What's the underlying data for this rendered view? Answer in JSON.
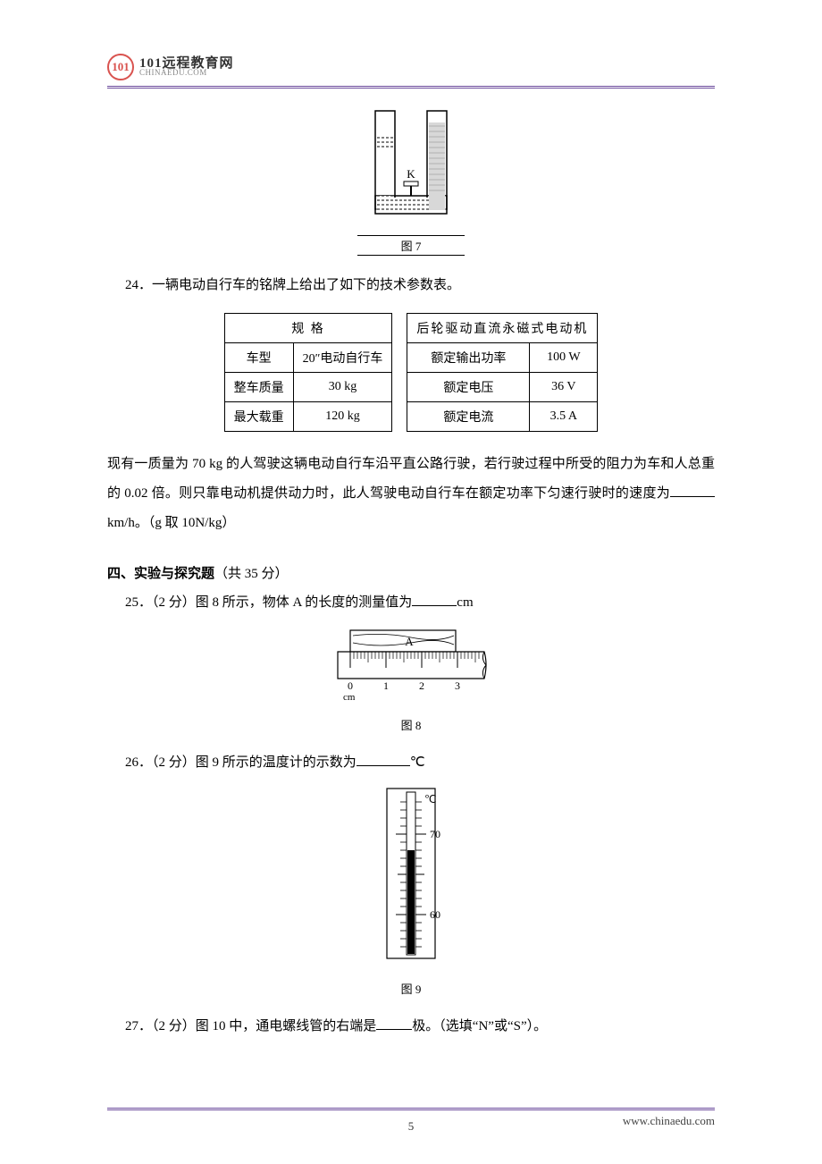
{
  "header": {
    "logo_text": "101远程教育网",
    "logo_sub": "CHINAEDU.COM",
    "logo_mark": "101"
  },
  "fig7": {
    "caption": "图 7",
    "k_label": "K",
    "stroke": "#000000",
    "fill_dots": "#cfcfcf"
  },
  "q24": {
    "label": "24．",
    "text": "一辆电动自行车的铭牌上给出了如下的技术参数表。",
    "table1": {
      "header": "规        格",
      "rows": [
        [
          "车型",
          "20″电动自行车"
        ],
        [
          "整车质量",
          "30 kg"
        ],
        [
          "最大载重",
          "120 kg"
        ]
      ]
    },
    "table2": {
      "header": "后轮驱动直流永磁式电动机",
      "rows": [
        [
          "额定输出功率",
          "100 W"
        ],
        [
          "额定电压",
          "36 V"
        ],
        [
          "额定电流",
          "3.5 A"
        ]
      ]
    },
    "para": "现有一质量为 70 kg 的人驾驶这辆电动自行车沿平直公路行驶，若行驶过程中所受的阻力为车和人总重的 0.02 倍。则只靠电动机提供动力时，此人驾驶电动自行车在额定功率下匀速行驶时的速度为",
    "unit": "km/h。（g 取 10N/kg）"
  },
  "section4": {
    "title": "四、实验与探究题",
    "points": "（共 35 分）"
  },
  "q25": {
    "label": "25．",
    "points": "（2 分）",
    "text": "图 8 所示，物体 A 的长度的测量值为",
    "unit": "cm",
    "fig": {
      "caption": "图 8",
      "object_label": "A",
      "ticks": [
        "0",
        "1",
        "2",
        "3"
      ],
      "unit": "cm",
      "stroke": "#000000"
    }
  },
  "q26": {
    "label": "26．",
    "points": "（2 分）",
    "text": "图 9 所示的温度计的示数为",
    "unit": "℃",
    "fig": {
      "caption": "图 9",
      "unit_label": "℃",
      "top_tick": "70",
      "bottom_tick": "60",
      "liquid_top_value": 68,
      "range": [
        55,
        75
      ],
      "liquid_color": "#000000",
      "stroke": "#000000"
    }
  },
  "q27": {
    "label": "27．",
    "points": "（2 分）",
    "text_a": "图 10 中，通电螺线管的右端是",
    "text_b": "极。（选填“N”或“S”）。"
  },
  "footer": {
    "url": "www.chinaedu.com",
    "page": "5"
  }
}
